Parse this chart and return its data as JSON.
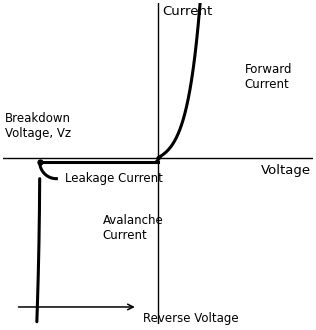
{
  "xlabel": "Voltage",
  "ylabel": "Current",
  "label_forward_current": "Forward\nCurrent",
  "label_leakage_current": "Leakage Current",
  "label_avalanche_current": "Avalanche\nCurrent",
  "label_breakdown": "Breakdown\nVoltage, Vz",
  "label_reverse_voltage": "Reverse Voltage",
  "axis_color": "#000000",
  "curve_color": "#000000",
  "curve_linewidth": 2.2,
  "background_color": "#ffffff",
  "text_color": "#000000",
  "xlim": [
    -4.2,
    4.2
  ],
  "ylim": [
    -4.5,
    4.2
  ],
  "breakdown_x": -3.2,
  "label_fontsize": 8.5,
  "axis_label_fontsize": 9.5
}
